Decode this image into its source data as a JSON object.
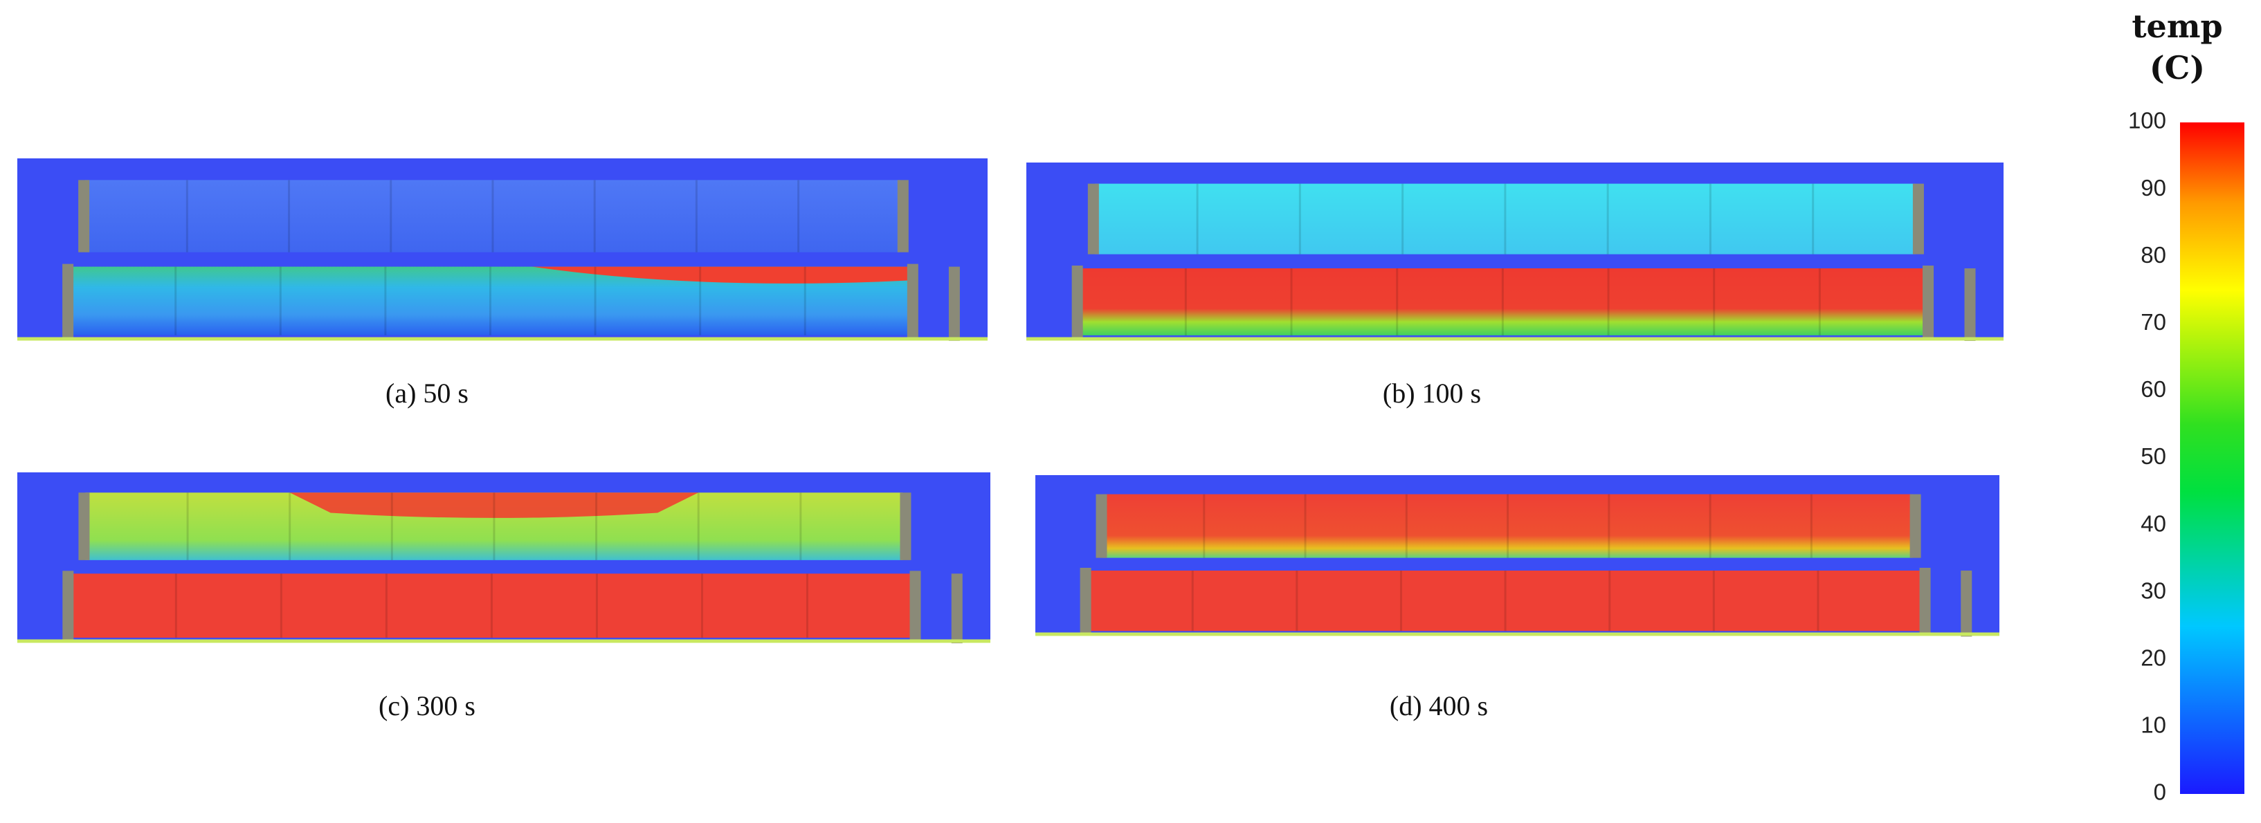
{
  "panels": [
    {
      "caption": "(a) 50 s"
    },
    {
      "caption": "(b) 100 s"
    },
    {
      "caption": "(c) 300 s"
    },
    {
      "caption": "(d) 400 s"
    }
  ],
  "colorbar": {
    "title": "temp",
    "unit": "(C)",
    "ticks": [
      0,
      10,
      20,
      30,
      40,
      50,
      60,
      70,
      80,
      90,
      100
    ]
  }
}
